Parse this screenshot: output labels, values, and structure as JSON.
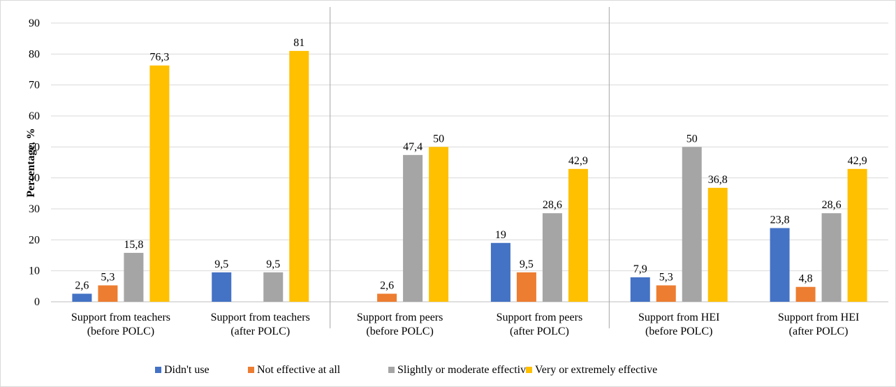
{
  "chart_data": {
    "type": "bar",
    "title": "",
    "xlabel": "",
    "ylabel": "Percentage, %",
    "ylim": [
      0,
      90
    ],
    "yticks": [
      0,
      10,
      20,
      30,
      40,
      50,
      60,
      70,
      80,
      90
    ],
    "grid": true,
    "legend_position": "bottom",
    "categories": [
      [
        "Support from teachers",
        "(before POLC)"
      ],
      [
        "Support from teachers",
        "(after POLC)"
      ],
      [
        "Support from peers",
        "(before POLC)"
      ],
      [
        "Support from peers",
        "(after POLC)"
      ],
      [
        "Support from HEI",
        "(before POLC)"
      ],
      [
        "Support from HEI",
        "(after POLC)"
      ]
    ],
    "series": [
      {
        "name": "Didn't use",
        "color": "#4472C4",
        "values": [
          2.6,
          9.5,
          null,
          19,
          7.9,
          23.8
        ],
        "labels": [
          "2,6",
          "9,5",
          "",
          "19",
          "7,9",
          "23,8"
        ]
      },
      {
        "name": "Not effective at all",
        "color": "#ED7D31",
        "values": [
          5.3,
          null,
          2.6,
          9.5,
          5.3,
          4.8
        ],
        "labels": [
          "5,3",
          "",
          "2,6",
          "9,5",
          "5,3",
          "4,8"
        ]
      },
      {
        "name": "Slightly or moderate effective",
        "color": "#A5A5A5",
        "values": [
          15.8,
          9.5,
          47.4,
          28.6,
          50,
          28.6
        ],
        "labels": [
          "15,8",
          "9,5",
          "47,4",
          "28,6",
          "50",
          "28,6"
        ]
      },
      {
        "name": "Very or extremely effective",
        "color": "#FFC000",
        "values": [
          76.3,
          81,
          50,
          42.9,
          36.8,
          42.9
        ],
        "labels": [
          "76,3",
          "81",
          "50",
          "42,9",
          "36,8",
          "42,9"
        ]
      }
    ]
  }
}
